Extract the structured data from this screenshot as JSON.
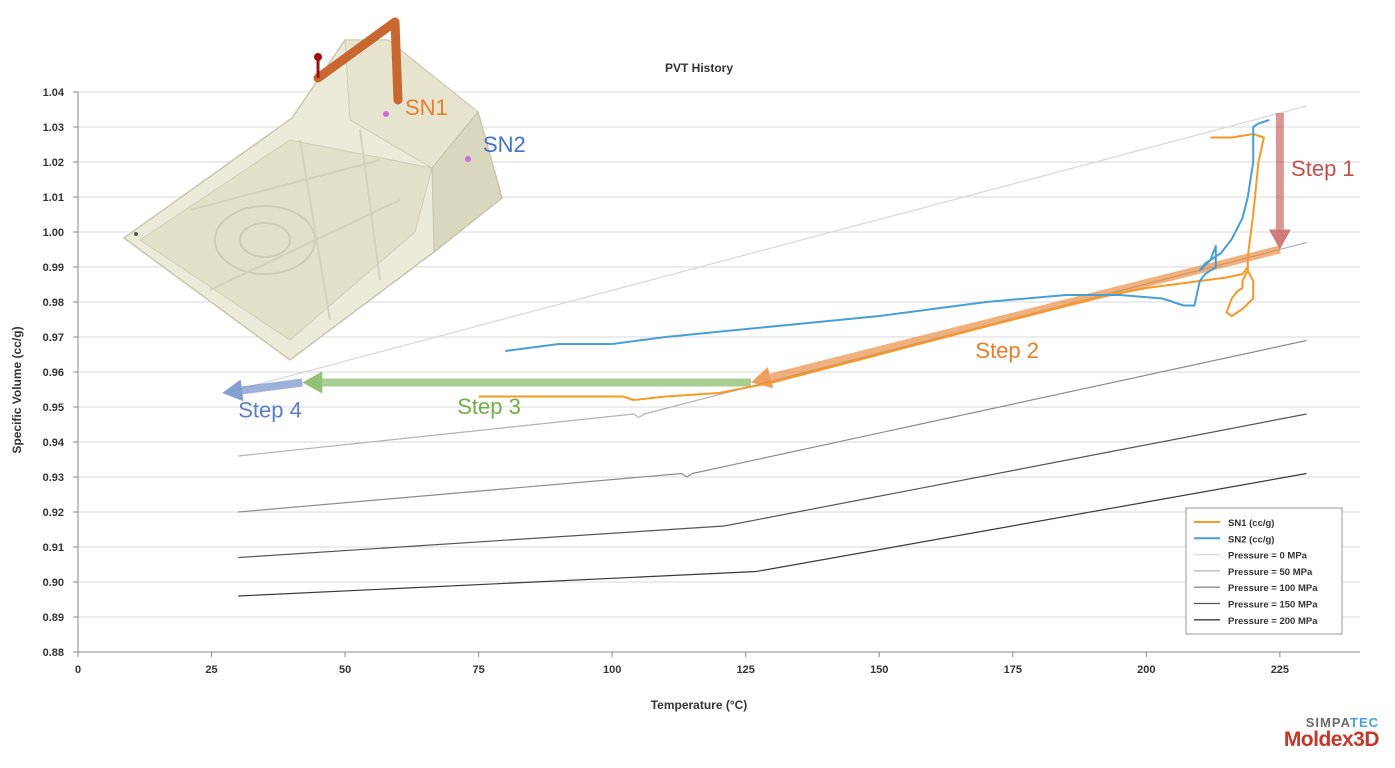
{
  "chart_data": {
    "type": "line",
    "title": "PVT History",
    "xlabel": "Temperature (°C)",
    "ylabel": "Specific Volume (cc/g)",
    "xlim": [
      0,
      240
    ],
    "ylim": [
      0.88,
      1.04
    ],
    "xticks": [
      0,
      25,
      50,
      75,
      100,
      125,
      150,
      175,
      200,
      225
    ],
    "yticks": [
      0.88,
      0.89,
      0.9,
      0.91,
      0.92,
      0.93,
      0.94,
      0.95,
      0.96,
      0.97,
      0.98,
      0.99,
      1.0,
      1.01,
      1.02,
      1.03,
      1.04
    ],
    "grid": "horizontal",
    "legend_position": "bottom-right",
    "series": [
      {
        "name": "SN1 (cc/g)",
        "color": "#f39a2b",
        "width": 2,
        "points": [
          [
            212,
            1.027
          ],
          [
            216,
            1.027
          ],
          [
            220,
            1.028
          ],
          [
            222,
            1.027
          ],
          [
            221,
            1.02
          ],
          [
            220,
            1.005
          ],
          [
            219,
            0.993
          ],
          [
            219,
            0.989
          ],
          [
            218,
            0.986
          ],
          [
            218,
            0.984
          ],
          [
            217,
            0.983
          ],
          [
            216,
            0.981
          ],
          [
            215,
            0.977
          ],
          [
            216,
            0.976
          ],
          [
            218,
            0.978
          ],
          [
            220,
            0.981
          ],
          [
            220,
            0.986
          ],
          [
            219,
            0.989
          ],
          [
            219,
            0.99
          ],
          [
            218,
            0.988
          ],
          [
            215,
            0.987
          ],
          [
            210,
            0.986
          ],
          [
            200,
            0.984
          ],
          [
            190,
            0.981
          ],
          [
            180,
            0.977
          ],
          [
            170,
            0.973
          ],
          [
            160,
            0.969
          ],
          [
            150,
            0.965
          ],
          [
            140,
            0.961
          ],
          [
            130,
            0.957
          ],
          [
            120,
            0.954
          ],
          [
            110,
            0.953
          ],
          [
            104,
            0.952
          ],
          [
            102,
            0.953
          ],
          [
            95,
            0.953
          ],
          [
            85,
            0.953
          ],
          [
            75,
            0.953
          ]
        ]
      },
      {
        "name": "SN2 (cc/g)",
        "color": "#4a9ed6",
        "width": 2,
        "points": [
          [
            223,
            1.032
          ],
          [
            221,
            1.031
          ],
          [
            220,
            1.03
          ],
          [
            220,
            1.02
          ],
          [
            219,
            1.01
          ],
          [
            218,
            1.004
          ],
          [
            216,
            0.998
          ],
          [
            214,
            0.994
          ],
          [
            211,
            0.991
          ],
          [
            210,
            0.989
          ],
          [
            212,
            0.992
          ],
          [
            213,
            0.996
          ],
          [
            213,
            0.99
          ],
          [
            211,
            0.988
          ],
          [
            210,
            0.986
          ],
          [
            209,
            0.979
          ],
          [
            207,
            0.979
          ],
          [
            203,
            0.981
          ],
          [
            195,
            0.982
          ],
          [
            185,
            0.982
          ],
          [
            170,
            0.98
          ],
          [
            150,
            0.976
          ],
          [
            130,
            0.973
          ],
          [
            110,
            0.97
          ],
          [
            100,
            0.968
          ],
          [
            95,
            0.968
          ],
          [
            90,
            0.968
          ],
          [
            85,
            0.967
          ],
          [
            80,
            0.966
          ]
        ]
      },
      {
        "name": "Pressure = 0 MPa",
        "color": "#d8d8d8",
        "width": 1,
        "points": [
          [
            30,
            0.955
          ],
          [
            230,
            1.036
          ]
        ]
      },
      {
        "name": "Pressure = 50 MPa",
        "color": "#b4b4b4",
        "width": 1,
        "points": [
          [
            30,
            0.936
          ],
          [
            104,
            0.948
          ],
          [
            105,
            0.947
          ],
          [
            106,
            0.948
          ],
          [
            230,
            0.997
          ]
        ]
      },
      {
        "name": "Pressure = 100 MPa",
        "color": "#8c8c8c",
        "width": 1,
        "points": [
          [
            30,
            0.92
          ],
          [
            113,
            0.931
          ],
          [
            114,
            0.93
          ],
          [
            115,
            0.931
          ],
          [
            230,
            0.969
          ]
        ]
      },
      {
        "name": "Pressure = 150 MPa",
        "color": "#555555",
        "width": 1,
        "points": [
          [
            30,
            0.907
          ],
          [
            121,
            0.916
          ],
          [
            230,
            0.948
          ]
        ]
      },
      {
        "name": "Pressure = 200 MPa",
        "color": "#3a3a3a",
        "width": 1,
        "points": [
          [
            30,
            0.896
          ],
          [
            127,
            0.903
          ],
          [
            230,
            0.931
          ]
        ]
      }
    ],
    "annotations": [
      {
        "text": "Step 1",
        "color": "#c0504d",
        "x": 239,
        "y": 1.016,
        "arrow_from": [
          225,
          1.034
        ],
        "arrow_to": [
          225,
          0.995
        ]
      },
      {
        "text": "Step 2",
        "color": "#e87d2a",
        "x": 168,
        "y": 0.964,
        "arrow_from": [
          225,
          0.995
        ],
        "arrow_to": [
          126,
          0.957
        ]
      },
      {
        "text": "Step 3",
        "color": "#70ad47",
        "x": 71,
        "y": 0.948,
        "arrow_from": [
          126,
          0.957
        ],
        "arrow_to": [
          42,
          0.957
        ]
      },
      {
        "text": "Step 4",
        "color": "#5b7fc2",
        "x": 30,
        "y": 0.947,
        "arrow_from": [
          42,
          0.957
        ],
        "arrow_to": [
          27,
          0.954
        ]
      }
    ]
  },
  "model_labels": {
    "sn1": "SN1",
    "sn2": "SN2",
    "sn1_color": "#e87d2a",
    "sn2_color": "#4472c4"
  },
  "logo": {
    "line1_a": "SIMPA",
    "line1_b": "TEC",
    "line2": "Moldex3D"
  }
}
